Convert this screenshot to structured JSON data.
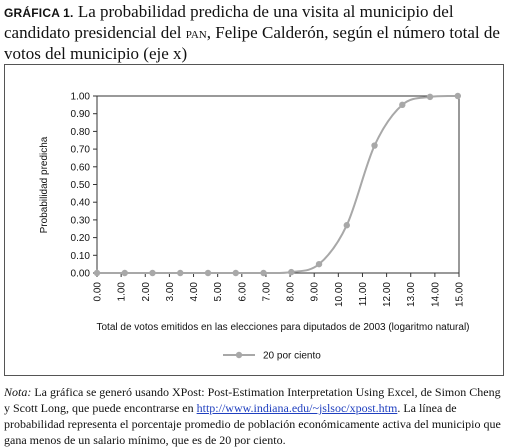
{
  "caption": {
    "label": "GRÁFICA 1.",
    "text_before": " La probabilidad predicha de una visita al municipio del candidato presidencial del ",
    "party": "PAN",
    "text_after": ", Felipe Calderón, según el número total de votos del municipio (eje x)"
  },
  "chart_data": {
    "type": "line",
    "xlabel": "Total de votos emitidos en las elecciones para diputados de 2003 (logaritmo natural)",
    "ylabel": "Probabilidad predicha",
    "xlim": [
      0,
      15
    ],
    "ylim": [
      0,
      1
    ],
    "x_ticks": [
      "0.00",
      "1.00",
      "2.00",
      "3.00",
      "4.00",
      "5.00",
      "6.00",
      "7.00",
      "8.00",
      "9.00",
      "10.00",
      "11.00",
      "12.00",
      "13.00",
      "14.00",
      "15.00"
    ],
    "y_ticks": [
      "0.00",
      "0.10",
      "0.20",
      "0.30",
      "0.40",
      "0.50",
      "0.60",
      "0.70",
      "0.80",
      "0.90",
      "1.00"
    ],
    "legend_position": "bottom-center",
    "grid": false,
    "series": [
      {
        "name": "20 por ciento",
        "color": "#a8a8a8",
        "x": [
          0,
          1.15,
          2.3,
          3.45,
          4.6,
          5.75,
          6.9,
          8.05,
          9.2,
          10.35,
          11.5,
          12.65,
          13.8,
          14.95
        ],
        "y": [
          0,
          0,
          0,
          0,
          0,
          0,
          0,
          0.005,
          0.05,
          0.27,
          0.72,
          0.95,
          0.995,
          1.0
        ]
      }
    ]
  },
  "note": {
    "label": "Nota:",
    "text_before": " La gráfica se generó usando XPost: Post-Estimation Interpretation Using Excel, de Simon Cheng y Scott Long, que puede encontrarse en ",
    "link": "http://www.indiana.edu/~jslsoc/xpost.htm",
    "text_after": ". La línea de probabilidad representa el porcentaje promedio de población económicamente activa del municipio que gana menos de un salario mínimo, que es de 20 por ciento."
  }
}
